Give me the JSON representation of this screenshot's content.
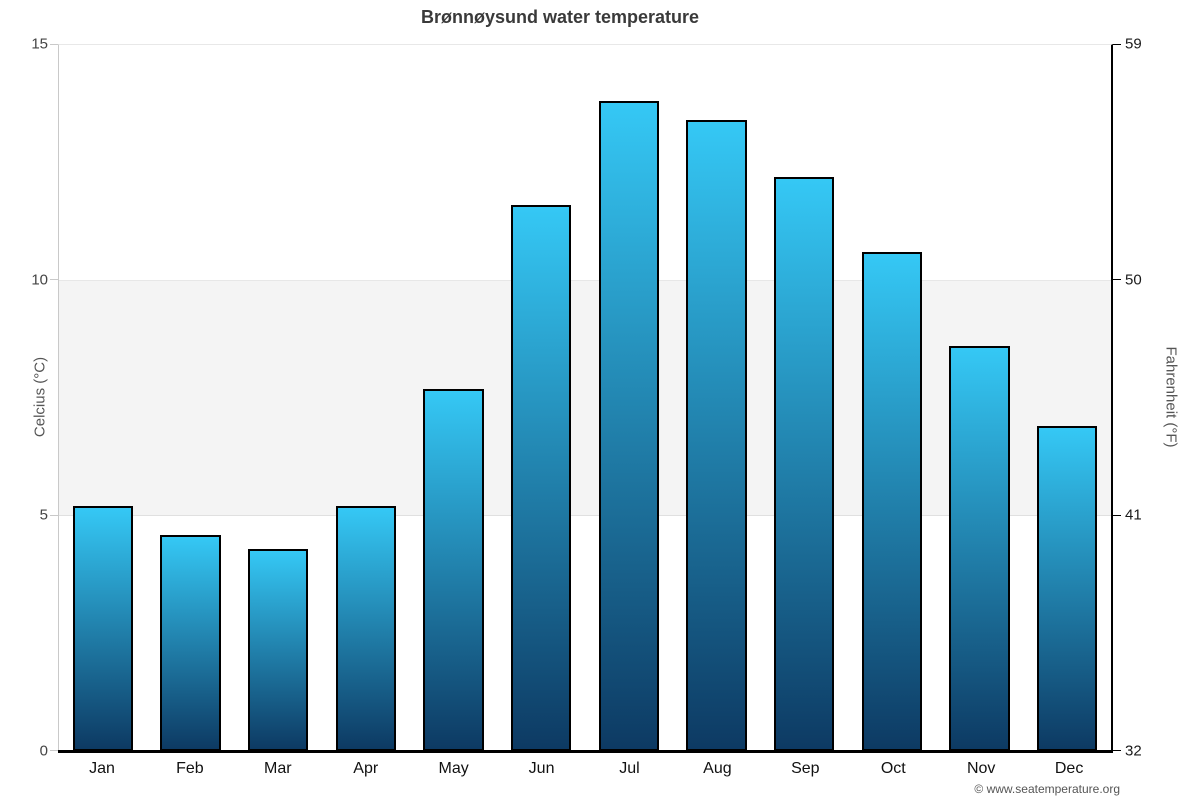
{
  "chart_data": {
    "type": "bar",
    "title": "Brønnøysund water temperature",
    "categories": [
      "Jan",
      "Feb",
      "Mar",
      "Apr",
      "May",
      "Jun",
      "Jul",
      "Aug",
      "Sep",
      "Oct",
      "Nov",
      "Dec"
    ],
    "values": [
      5.2,
      4.6,
      4.3,
      5.2,
      7.7,
      11.6,
      13.8,
      13.4,
      12.2,
      10.6,
      8.6,
      6.9
    ],
    "unit": "°C",
    "ylabel_left": "Celcius (°C)",
    "ylabel_right": "Fahrenheit (°F)",
    "ylim": [
      0,
      15
    ],
    "yticks_celsius": [
      15,
      10,
      5,
      0
    ],
    "yticks_fahrenheit": [
      59,
      50,
      41,
      32
    ],
    "band": {
      "from": 5,
      "to": 10,
      "color": "#f4f4f4"
    },
    "legend_position": "none",
    "grid": "alternate-band-only",
    "bar_gradient_top": "#35c8f5",
    "bar_gradient_bottom": "#0d3a63",
    "credit": "© www.seatemperature.org"
  }
}
